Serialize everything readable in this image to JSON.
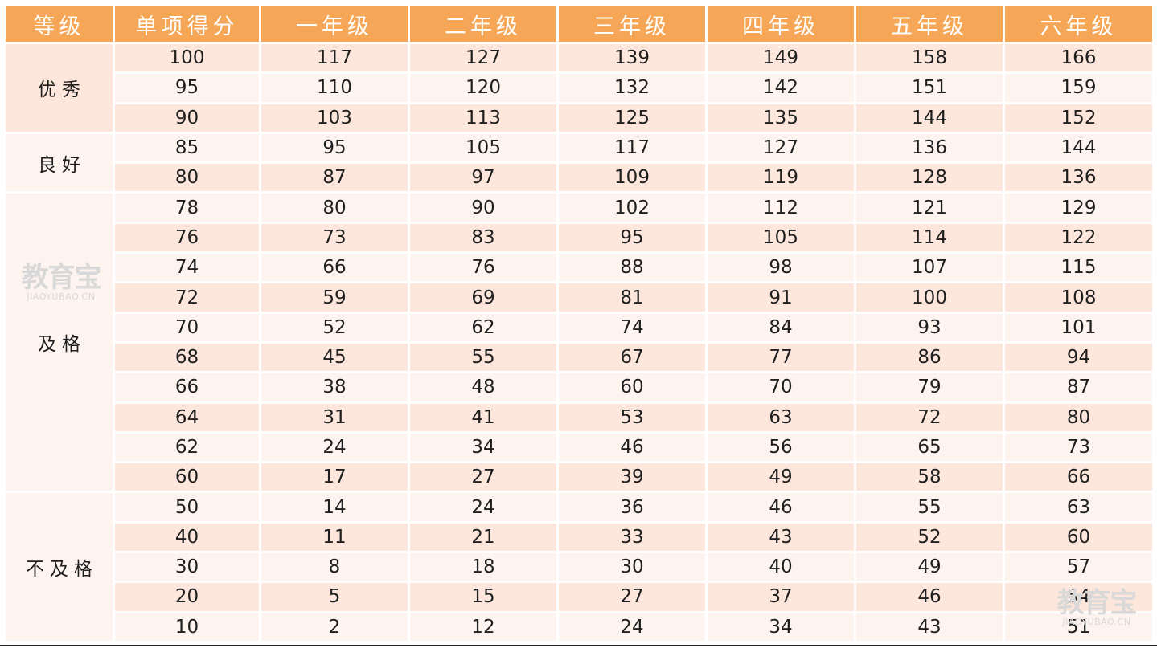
{
  "headers": [
    "等级",
    "单项得分",
    "一年级",
    "二年级",
    "三年级",
    "四年级",
    "五年级",
    "六年级"
  ],
  "levels": [
    {
      "label": "优秀",
      "rows": [
        [
          "100",
          "117",
          "127",
          "139",
          "149",
          "158",
          "166"
        ],
        [
          "95",
          "110",
          "120",
          "132",
          "142",
          "151",
          "159"
        ],
        [
          "90",
          "103",
          "113",
          "125",
          "135",
          "144",
          "152"
        ]
      ]
    },
    {
      "label": "良好",
      "rows": [
        [
          "85",
          "95",
          "105",
          "117",
          "127",
          "136",
          "144"
        ],
        [
          "80",
          "87",
          "97",
          "109",
          "119",
          "128",
          "136"
        ]
      ]
    },
    {
      "label": "及格",
      "rows": [
        [
          "78",
          "80",
          "90",
          "102",
          "112",
          "121",
          "129"
        ],
        [
          "76",
          "73",
          "83",
          "95",
          "105",
          "114",
          "122"
        ],
        [
          "74",
          "66",
          "76",
          "88",
          "98",
          "107",
          "115"
        ],
        [
          "72",
          "59",
          "69",
          "81",
          "91",
          "100",
          "108"
        ],
        [
          "70",
          "52",
          "62",
          "74",
          "84",
          "93",
          "101"
        ],
        [
          "68",
          "45",
          "55",
          "67",
          "77",
          "86",
          "94"
        ],
        [
          "66",
          "38",
          "48",
          "60",
          "70",
          "79",
          "87"
        ],
        [
          "64",
          "31",
          "41",
          "53",
          "63",
          "72",
          "80"
        ],
        [
          "62",
          "24",
          "34",
          "46",
          "56",
          "65",
          "73"
        ],
        [
          "60",
          "17",
          "27",
          "39",
          "49",
          "58",
          "66"
        ]
      ]
    },
    {
      "label": "不及格",
      "rows": [
        [
          "50",
          "14",
          "24",
          "36",
          "46",
          "55",
          "63"
        ],
        [
          "40",
          "11",
          "21",
          "33",
          "43",
          "52",
          "60"
        ],
        [
          "30",
          "8",
          "18",
          "30",
          "40",
          "49",
          "57"
        ],
        [
          "20",
          "5",
          "15",
          "27",
          "37",
          "46",
          "54"
        ],
        [
          "10",
          "2",
          "12",
          "24",
          "34",
          "43",
          "51"
        ]
      ]
    }
  ],
  "watermark": {
    "main": "教育宝",
    "sub": "JIAOYUBAO.CN"
  },
  "colors": {
    "header_bg": "#f5a656",
    "row_odd": "#fde6db",
    "row_even": "#fdf4ef",
    "header_text": "#ffffff"
  }
}
